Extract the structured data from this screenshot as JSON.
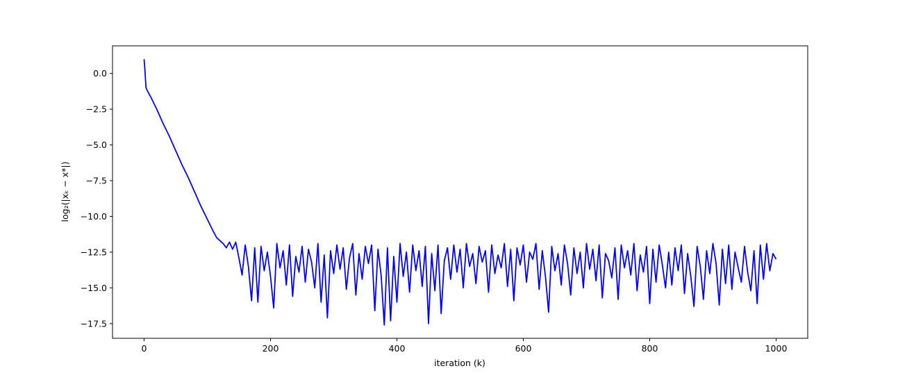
{
  "chart_data": {
    "type": "line",
    "xlabel": "iteration (k)",
    "ylabel": "log₂(|xₖ − x*|)",
    "xlim": [
      -50,
      1050
    ],
    "ylim": [
      -18.53,
      1.93
    ],
    "xticks": [
      0,
      200,
      400,
      600,
      800,
      1000
    ],
    "yticks": [
      {
        "value": 0,
        "label": "0.0"
      },
      {
        "value": -2.5,
        "label": "−2.5"
      },
      {
        "value": -5,
        "label": "−5.0"
      },
      {
        "value": -7.5,
        "label": "−7.5"
      },
      {
        "value": -10,
        "label": "−10.0"
      },
      {
        "value": -12.5,
        "label": "−12.5"
      },
      {
        "value": -15,
        "label": "−15.0"
      },
      {
        "value": -17.5,
        "label": "−17.5"
      }
    ],
    "grid": false,
    "series": [
      {
        "color": "#0000ff",
        "x": [
          0,
          1,
          2,
          3,
          5,
          10,
          20,
          30,
          40,
          50,
          60,
          70,
          80,
          90,
          100,
          110,
          115,
          120,
          125,
          130,
          135,
          140,
          145,
          150,
          155,
          160,
          165,
          170,
          175,
          180,
          185,
          190,
          195,
          200,
          205,
          210,
          215,
          220,
          225,
          230,
          235,
          240,
          245,
          250,
          255,
          260,
          265,
          270,
          275,
          280,
          285,
          290,
          295,
          300,
          305,
          310,
          315,
          320,
          325,
          330,
          335,
          340,
          345,
          350,
          355,
          360,
          365,
          370,
          375,
          380,
          385,
          390,
          395,
          400,
          405,
          410,
          415,
          420,
          425,
          430,
          435,
          440,
          445,
          450,
          455,
          460,
          465,
          470,
          475,
          480,
          485,
          490,
          495,
          500,
          505,
          510,
          515,
          520,
          525,
          530,
          535,
          540,
          545,
          550,
          555,
          560,
          565,
          570,
          575,
          580,
          585,
          590,
          595,
          600,
          605,
          610,
          615,
          620,
          625,
          630,
          635,
          640,
          645,
          650,
          655,
          660,
          665,
          670,
          675,
          680,
          685,
          690,
          695,
          700,
          705,
          710,
          715,
          720,
          725,
          730,
          735,
          740,
          745,
          750,
          755,
          760,
          765,
          770,
          775,
          780,
          785,
          790,
          795,
          800,
          805,
          810,
          815,
          820,
          825,
          830,
          835,
          840,
          845,
          850,
          855,
          860,
          865,
          870,
          875,
          880,
          885,
          890,
          895,
          900,
          905,
          910,
          915,
          920,
          925,
          930,
          935,
          940,
          945,
          950,
          955,
          960,
          965,
          970,
          975,
          980,
          985,
          990,
          995,
          1000
        ],
        "values": [
          1.0,
          0.4,
          -0.3,
          -1.0,
          -1.2,
          -1.6,
          -2.5,
          -3.5,
          -4.4,
          -5.4,
          -6.4,
          -7.3,
          -8.3,
          -9.3,
          -10.2,
          -11.1,
          -11.5,
          -11.7,
          -11.9,
          -12.2,
          -11.8,
          -12.3,
          -11.8,
          -12.9,
          -14.1,
          -12.0,
          -13.5,
          -15.9,
          -12.2,
          -16.0,
          -12.1,
          -13.8,
          -12.5,
          -14.2,
          -16.4,
          -11.9,
          -13.6,
          -12.4,
          -14.8,
          -12.0,
          -15.6,
          -12.8,
          -13.9,
          -12.1,
          -14.6,
          -12.3,
          -13.2,
          -15.0,
          -11.9,
          -16.0,
          -12.7,
          -17.1,
          -12.4,
          -14.0,
          -12.0,
          -13.7,
          -12.2,
          -15.1,
          -12.9,
          -11.9,
          -15.5,
          -12.6,
          -14.4,
          -12.1,
          -13.3,
          -12.0,
          -16.6,
          -12.3,
          -14.1,
          -17.6,
          -12.2,
          -17.3,
          -12.8,
          -16.0,
          -11.9,
          -14.2,
          -12.5,
          -15.3,
          -12.0,
          -13.8,
          -12.4,
          -14.9,
          -12.1,
          -17.5,
          -12.6,
          -15.2,
          -12.0,
          -16.8,
          -13.1,
          -12.2,
          -14.4,
          -12.0,
          -13.9,
          -12.3,
          -15.0,
          -11.9,
          -13.5,
          -12.6,
          -14.7,
          -12.1,
          -13.2,
          -12.4,
          -15.3,
          -12.0,
          -14.0,
          -12.7,
          -13.6,
          -11.9,
          -14.9,
          -12.3,
          -15.9,
          -12.2,
          -13.4,
          -12.0,
          -14.6,
          -12.5,
          -13.0,
          -11.9,
          -15.1,
          -12.4,
          -14.2,
          -16.7,
          -12.1,
          -13.8,
          -12.6,
          -14.8,
          -12.0,
          -13.3,
          -15.5,
          -12.2,
          -14.0,
          -12.5,
          -15.0,
          -11.9,
          -13.7,
          -12.3,
          -14.5,
          -12.0,
          -15.7,
          -12.6,
          -13.1,
          -14.3,
          -12.2,
          -15.8,
          -12.0,
          -13.6,
          -12.4,
          -14.1,
          -11.9,
          -15.2,
          -12.7,
          -13.9,
          -12.1,
          -16.1,
          -12.3,
          -14.6,
          -12.0,
          -13.4,
          -15.0,
          -12.5,
          -14.8,
          -12.2,
          -13.8,
          -12.0,
          -15.4,
          -12.6,
          -14.2,
          -16.3,
          -12.1,
          -13.5,
          -15.8,
          -12.4,
          -14.0,
          -11.9,
          -13.3,
          -16.2,
          -12.3,
          -14.7,
          -12.0,
          -15.1,
          -12.5,
          -13.6,
          -14.6,
          -12.1,
          -13.9,
          -15.2,
          -12.4,
          -16.1,
          -12.0,
          -14.4,
          -11.9,
          -13.8,
          -12.6,
          -13.0
        ]
      }
    ]
  }
}
